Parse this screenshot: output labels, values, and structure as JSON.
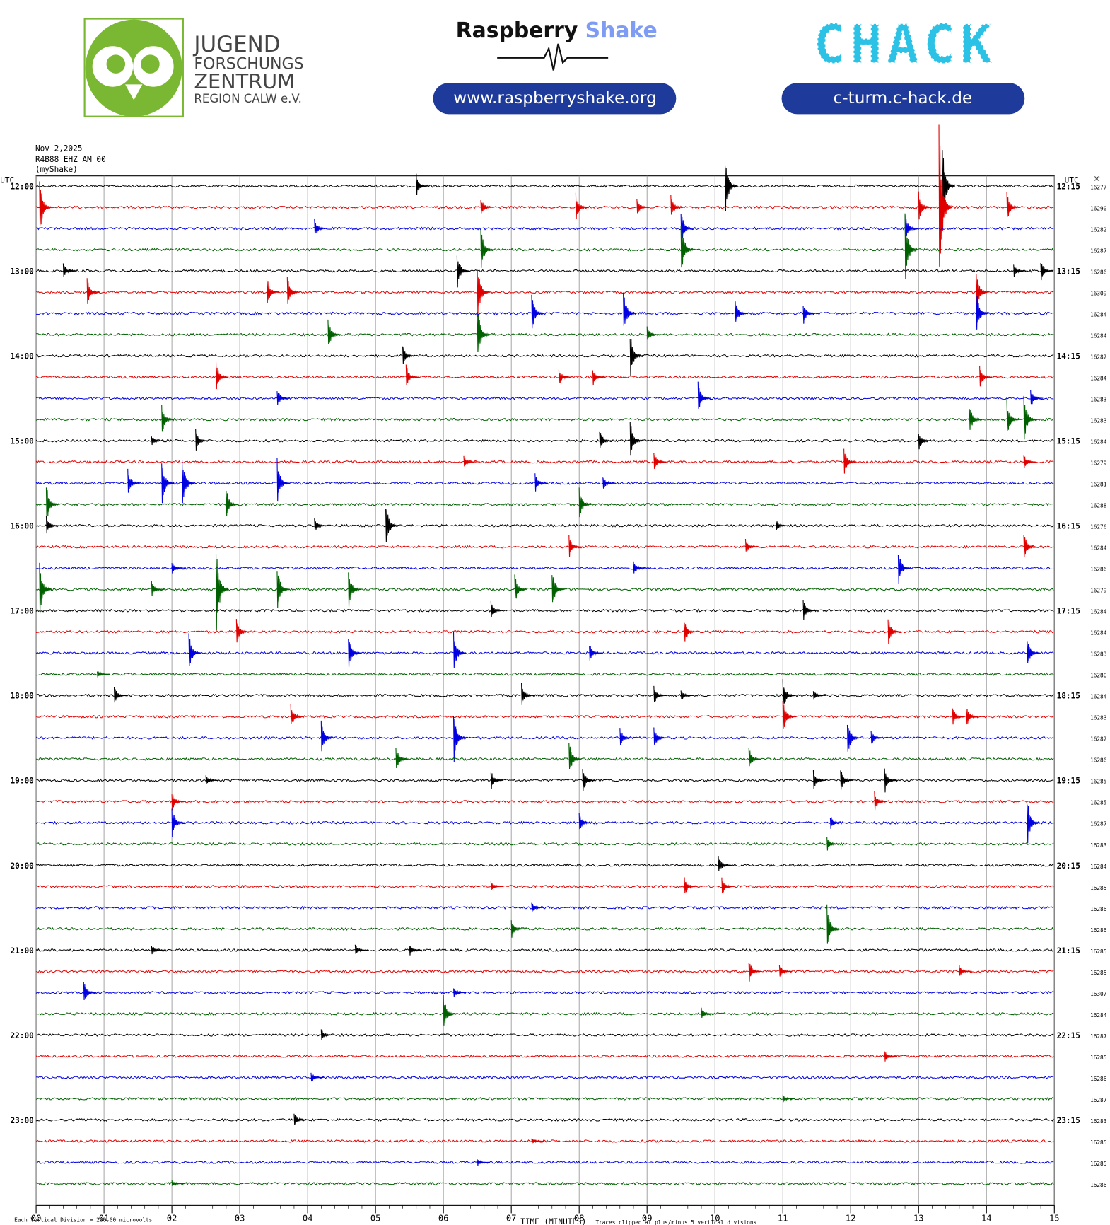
{
  "header": {
    "jfz": [
      "JUGEND",
      "FORSCHUNGS",
      "ZENTRUM",
      "REGION CALW e.V."
    ],
    "rs_name": "Raspberry",
    "rs_shake": "Shake",
    "rs_url": "www.raspberryshake.org",
    "chack": "CHACK",
    "chack_url": "c-turm.c-hack.de"
  },
  "chart_data": {
    "type": "helicorder",
    "date": "Nov 2,2025",
    "station": "R4B88 EHZ AM 00",
    "source": "(myShake)",
    "left_unit": "UTC",
    "right_unit": "UTC",
    "dc_header": "DC",
    "x_label": "TIME (MINUTES)",
    "scale_note": "Each Vertical Division =  200.00 microvolts",
    "clip_note": "Traces clipped at plus/minus 5 vertical divisions",
    "colors": [
      "#000000",
      "#e00000",
      "#0000e0",
      "#006000"
    ],
    "xlim": [
      0,
      15
    ],
    "xticks": [
      {
        "value": 0,
        "label": "00"
      },
      {
        "value": 1,
        "label": "01"
      },
      {
        "value": 2,
        "label": "02"
      },
      {
        "value": 3,
        "label": "03"
      },
      {
        "value": 4,
        "label": "04"
      },
      {
        "value": 5,
        "label": "05"
      },
      {
        "value": 6,
        "label": "06"
      },
      {
        "value": 7,
        "label": "07"
      },
      {
        "value": 8,
        "label": "08"
      },
      {
        "value": 9,
        "label": "09"
      },
      {
        "value": 10,
        "label": "10"
      },
      {
        "value": 11,
        "label": "11"
      },
      {
        "value": 12,
        "label": "12"
      },
      {
        "value": 13,
        "label": "13"
      },
      {
        "value": 14,
        "label": "14"
      },
      {
        "value": 15,
        "label": "15"
      }
    ],
    "left_labels": [
      "12:00",
      "13:00",
      "14:00",
      "15:00",
      "16:00",
      "17:00",
      "18:00",
      "19:00",
      "20:00",
      "21:00",
      "22:00",
      "23:00"
    ],
    "right_labels": [
      "12:15",
      "13:15",
      "14:15",
      "15:15",
      "16:15",
      "17:15",
      "18:15",
      "19:15",
      "20:15",
      "21:15",
      "22:15",
      "23:15"
    ],
    "rows": [
      {
        "dc": 16277,
        "spikes": [
          [
            5.6,
            0.6
          ],
          [
            10.15,
            1.5
          ],
          [
            13.35,
            2.0
          ]
        ]
      },
      {
        "dc": 16290,
        "spikes": [
          [
            0.05,
            1.5
          ],
          [
            6.55,
            0.5
          ],
          [
            7.95,
            0.7
          ],
          [
            8.85,
            0.5
          ],
          [
            9.35,
            0.6
          ],
          [
            13.0,
            0.8
          ],
          [
            13.3,
            4.5
          ],
          [
            14.3,
            0.8
          ]
        ]
      },
      {
        "dc": 16282,
        "spikes": [
          [
            4.1,
            0.5
          ],
          [
            9.5,
            0.9
          ],
          [
            12.8,
            0.8
          ]
        ]
      },
      {
        "dc": 16287,
        "spikes": [
          [
            6.55,
            1.2
          ],
          [
            9.5,
            1.5
          ],
          [
            12.8,
            2.0
          ]
        ]
      },
      {
        "dc": 16286,
        "spikes": [
          [
            0.4,
            0.4
          ],
          [
            6.2,
            1.0
          ],
          [
            14.4,
            0.4
          ],
          [
            14.8,
            0.6
          ]
        ]
      },
      {
        "dc": 16309,
        "spikes": [
          [
            0.75,
            0.7
          ],
          [
            3.4,
            0.8
          ],
          [
            3.7,
            0.8
          ],
          [
            6.5,
            1.5
          ],
          [
            13.85,
            1.0
          ]
        ]
      },
      {
        "dc": 16284,
        "spikes": [
          [
            7.3,
            1.0
          ],
          [
            8.65,
            1.2
          ],
          [
            10.3,
            0.7
          ],
          [
            11.3,
            0.6
          ],
          [
            13.85,
            1.2
          ]
        ]
      },
      {
        "dc": 16284,
        "spikes": [
          [
            4.3,
            0.8
          ],
          [
            6.5,
            1.5
          ],
          [
            9.0,
            0.4
          ]
        ]
      },
      {
        "dc": 16282,
        "spikes": [
          [
            5.4,
            0.6
          ],
          [
            8.75,
            1.2
          ]
        ]
      },
      {
        "dc": 16284,
        "spikes": [
          [
            2.65,
            0.8
          ],
          [
            5.45,
            0.6
          ],
          [
            7.7,
            0.5
          ],
          [
            8.2,
            0.5
          ],
          [
            13.9,
            0.6
          ]
        ]
      },
      {
        "dc": 16283,
        "spikes": [
          [
            3.55,
            0.5
          ],
          [
            9.75,
            0.9
          ],
          [
            14.65,
            0.5
          ]
        ]
      },
      {
        "dc": 16283,
        "spikes": [
          [
            1.85,
            0.8
          ],
          [
            13.75,
            0.8
          ],
          [
            14.3,
            1.0
          ],
          [
            14.55,
            1.2
          ]
        ]
      },
      {
        "dc": 16284,
        "spikes": [
          [
            1.7,
            0.3
          ],
          [
            2.35,
            0.6
          ],
          [
            8.3,
            0.6
          ],
          [
            8.75,
            1.0
          ],
          [
            13.0,
            0.5
          ]
        ]
      },
      {
        "dc": 16279,
        "spikes": [
          [
            6.3,
            0.3
          ],
          [
            9.1,
            0.6
          ],
          [
            11.9,
            0.7
          ],
          [
            14.55,
            0.4
          ]
        ]
      },
      {
        "dc": 16281,
        "spikes": [
          [
            1.35,
            0.7
          ],
          [
            1.85,
            1.2
          ],
          [
            2.15,
            1.5
          ],
          [
            3.55,
            1.2
          ],
          [
            7.35,
            0.5
          ],
          [
            8.35,
            0.4
          ]
        ]
      },
      {
        "dc": 16288,
        "spikes": [
          [
            0.15,
            1.0
          ],
          [
            2.8,
            0.8
          ],
          [
            8.0,
            0.8
          ]
        ]
      },
      {
        "dc": 16276,
        "spikes": [
          [
            0.15,
            0.5
          ],
          [
            4.1,
            0.4
          ],
          [
            5.15,
            1.2
          ],
          [
            10.9,
            0.3
          ]
        ]
      },
      {
        "dc": 16284,
        "spikes": [
          [
            7.85,
            0.6
          ],
          [
            10.45,
            0.4
          ],
          [
            14.55,
            0.8
          ]
        ]
      },
      {
        "dc": 16286,
        "spikes": [
          [
            2.0,
            0.4
          ],
          [
            8.8,
            0.4
          ],
          [
            12.7,
            1.0
          ]
        ]
      },
      {
        "dc": 16279,
        "spikes": [
          [
            0.05,
            1.5
          ],
          [
            1.7,
            0.4
          ],
          [
            2.65,
            2.5
          ],
          [
            3.55,
            1.2
          ],
          [
            4.6,
            1.0
          ],
          [
            7.05,
            0.8
          ],
          [
            7.6,
            1.0
          ]
        ]
      },
      {
        "dc": 16284,
        "spikes": [
          [
            6.7,
            0.5
          ],
          [
            11.3,
            0.6
          ]
        ]
      },
      {
        "dc": 16284,
        "spikes": [
          [
            2.95,
            0.7
          ],
          [
            9.55,
            0.6
          ],
          [
            12.55,
            0.8
          ]
        ]
      },
      {
        "dc": 16283,
        "spikes": [
          [
            2.25,
            1.0
          ],
          [
            4.6,
            1.0
          ],
          [
            6.15,
            1.1
          ],
          [
            8.15,
            0.5
          ],
          [
            14.6,
            0.8
          ]
        ]
      },
      {
        "dc": 16280,
        "spikes": [
          [
            0.9,
            0.2
          ]
        ]
      },
      {
        "dc": 16284,
        "spikes": [
          [
            1.15,
            0.5
          ],
          [
            7.15,
            0.6
          ],
          [
            9.1,
            0.5
          ],
          [
            9.5,
            0.3
          ],
          [
            11.0,
            0.8
          ],
          [
            11.45,
            0.3
          ]
        ]
      },
      {
        "dc": 16283,
        "spikes": [
          [
            3.75,
            0.7
          ],
          [
            11.0,
            1.0
          ],
          [
            13.5,
            0.5
          ],
          [
            13.7,
            0.6
          ]
        ]
      },
      {
        "dc": 16282,
        "spikes": [
          [
            4.2,
            0.9
          ],
          [
            6.15,
            1.5
          ],
          [
            8.6,
            0.5
          ],
          [
            9.1,
            0.6
          ],
          [
            11.95,
            1.0
          ],
          [
            12.3,
            0.4
          ]
        ]
      },
      {
        "dc": 16286,
        "spikes": [
          [
            5.3,
            0.7
          ],
          [
            7.85,
            0.9
          ],
          [
            10.5,
            0.6
          ]
        ]
      },
      {
        "dc": 16285,
        "spikes": [
          [
            2.5,
            0.3
          ],
          [
            6.7,
            0.5
          ],
          [
            8.05,
            0.7
          ],
          [
            11.45,
            0.5
          ],
          [
            11.85,
            0.6
          ],
          [
            12.5,
            0.7
          ]
        ]
      },
      {
        "dc": 16285,
        "spikes": [
          [
            2.0,
            0.5
          ],
          [
            12.35,
            0.5
          ]
        ]
      },
      {
        "dc": 16287,
        "spikes": [
          [
            2.0,
            0.8
          ],
          [
            8.0,
            0.5
          ],
          [
            11.7,
            0.4
          ],
          [
            14.6,
            1.2
          ]
        ]
      },
      {
        "dc": 16283,
        "spikes": [
          [
            11.65,
            0.4
          ]
        ]
      },
      {
        "dc": 16284,
        "spikes": [
          [
            10.05,
            0.5
          ]
        ]
      },
      {
        "dc": 16285,
        "spikes": [
          [
            6.7,
            0.3
          ],
          [
            9.55,
            0.5
          ],
          [
            10.1,
            0.5
          ]
        ]
      },
      {
        "dc": 16286,
        "spikes": [
          [
            7.3,
            0.3
          ]
        ]
      },
      {
        "dc": 16286,
        "spikes": [
          [
            7.0,
            0.5
          ],
          [
            11.65,
            1.2
          ]
        ]
      },
      {
        "dc": 16285,
        "spikes": [
          [
            1.7,
            0.3
          ],
          [
            4.7,
            0.3
          ],
          [
            5.5,
            0.3
          ]
        ]
      },
      {
        "dc": 16285,
        "spikes": [
          [
            10.5,
            0.6
          ],
          [
            10.95,
            0.4
          ],
          [
            13.6,
            0.3
          ]
        ]
      },
      {
        "dc": 16307,
        "spikes": [
          [
            0.7,
            0.7
          ],
          [
            6.15,
            0.3
          ]
        ]
      },
      {
        "dc": 16284,
        "spikes": [
          [
            6.0,
            1.0
          ],
          [
            9.8,
            0.3
          ]
        ]
      },
      {
        "dc": 16287,
        "spikes": [
          [
            4.2,
            0.3
          ]
        ]
      },
      {
        "dc": 16285,
        "spikes": [
          [
            12.5,
            0.3
          ]
        ]
      },
      {
        "dc": 16286,
        "spikes": [
          [
            4.05,
            0.3
          ]
        ]
      },
      {
        "dc": 16287,
        "spikes": [
          [
            11.0,
            0.2
          ]
        ]
      },
      {
        "dc": 16283,
        "spikes": [
          [
            3.8,
            0.4
          ]
        ]
      },
      {
        "dc": 16285,
        "spikes": [
          [
            7.3,
            0.2
          ]
        ]
      },
      {
        "dc": 16285,
        "spikes": [
          [
            6.5,
            0.2
          ]
        ]
      },
      {
        "dc": 16286,
        "spikes": [
          [
            2.0,
            0.2
          ]
        ]
      }
    ]
  }
}
